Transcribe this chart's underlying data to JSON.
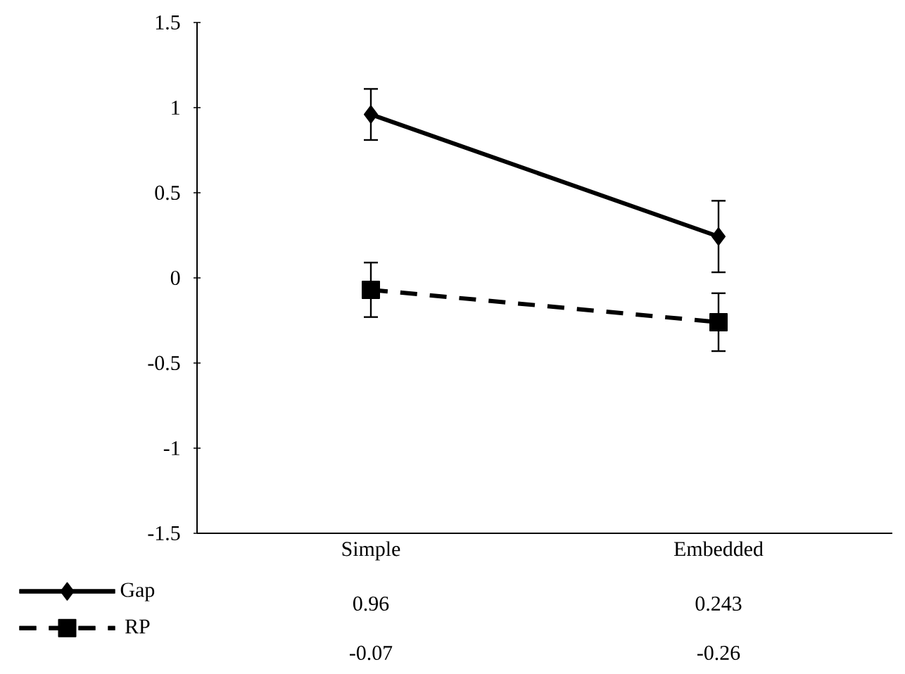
{
  "chart_data": {
    "type": "line",
    "categories": [
      "Simple",
      "Embedded"
    ],
    "series": [
      {
        "name": "Gap",
        "color": "#000000",
        "marker": "diamond",
        "line_style": "solid",
        "values": [
          0.96,
          0.243
        ],
        "errors": [
          0.15,
          0.21
        ]
      },
      {
        "name": "RP",
        "color": "#000000",
        "marker": "square",
        "line_style": "dashed",
        "values": [
          -0.07,
          -0.26
        ],
        "errors": [
          0.16,
          0.17
        ]
      }
    ],
    "ylim": [
      -1.5,
      1.5
    ],
    "yticks": [
      -1.5,
      -1,
      -0.5,
      0,
      0.5,
      1,
      1.5
    ],
    "data_labels": true,
    "legend": "bottom left",
    "grid": false
  }
}
